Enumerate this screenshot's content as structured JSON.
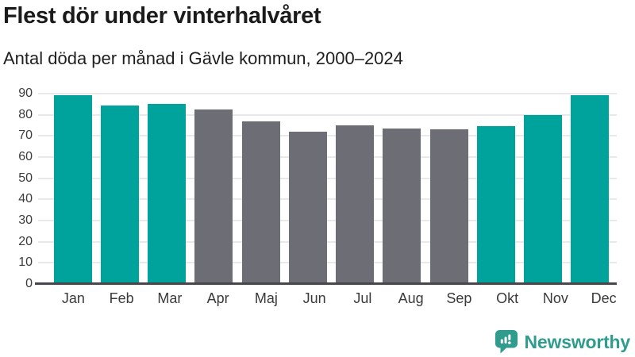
{
  "header": {
    "title": "Flest dör under vinterhalvåret",
    "subtitle": "Antal döda per månad i Gävle kommun, 2000–2024"
  },
  "footer": {
    "brand": "Newsworthy",
    "logo_icon": "speech-bubble-with-bar-chart-and-exclamation",
    "brand_color": "#2f9c8e"
  },
  "chart_data": {
    "type": "bar",
    "title": "Flest dör under vinterhalvåret",
    "subtitle": "Antal döda per månad i Gävle kommun, 2000–2024",
    "categories": [
      "Jan",
      "Feb",
      "Mar",
      "Apr",
      "Maj",
      "Jun",
      "Jul",
      "Aug",
      "Sep",
      "Okt",
      "Nov",
      "Dec"
    ],
    "values": [
      89.4,
      84.3,
      85.2,
      82.6,
      76.9,
      72.1,
      74.9,
      73.6,
      73.2,
      74.5,
      79.9,
      89.3
    ],
    "bar_colors": [
      "#00a39b",
      "#00a39b",
      "#00a39b",
      "#6d6d75",
      "#6d6d75",
      "#6d6d75",
      "#6d6d75",
      "#6d6d75",
      "#6d6d75",
      "#00a39b",
      "#00a39b",
      "#00a39b"
    ],
    "highlighted_categories": [
      "Jan",
      "Feb",
      "Mar",
      "Okt",
      "Nov",
      "Dec"
    ],
    "xlabel": "",
    "ylabel": "",
    "ylim": [
      0,
      90
    ],
    "yticks": [
      0,
      10,
      20,
      30,
      40,
      50,
      60,
      70,
      80,
      90
    ],
    "grid": "horizontal-light",
    "legend": "none",
    "colors": {
      "highlight": "#00a39b",
      "muted": "#6d6d75",
      "axis_text": "#3c3c3c",
      "gridline": "#e9e9ec",
      "baseline": "#46464c"
    }
  }
}
